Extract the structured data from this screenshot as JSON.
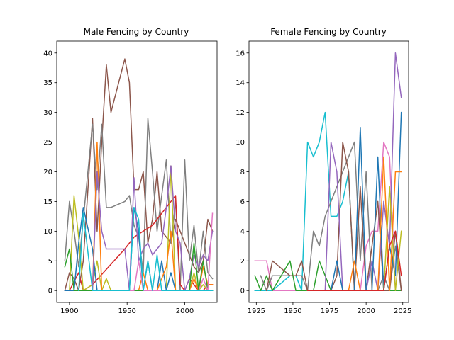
{
  "chart_data": [
    {
      "type": "line",
      "title": "Male Fencing by Country",
      "xlabel": "",
      "ylabel": "",
      "xlim": [
        1889,
        2028
      ],
      "ylim": [
        -2,
        42
      ],
      "xticks": [
        1900,
        1950,
        2000
      ],
      "yticks": [
        0,
        5,
        10,
        15,
        20,
        25,
        30,
        35,
        40
      ],
      "grid": false,
      "legend": "none",
      "series": [
        {
          "color": "#8c564b",
          "x": [
            1896,
            1900,
            1904,
            1908,
            1912,
            1920,
            1924,
            1928,
            1932,
            1936,
            1948,
            1952,
            1956,
            1960,
            1964,
            1968,
            1972,
            1976,
            1980,
            1984,
            1988,
            1992,
            1996,
            2000,
            2004,
            2008,
            2012,
            2016,
            2020,
            2024
          ],
          "values": [
            0,
            3,
            2,
            0,
            5,
            29,
            10,
            25,
            38,
            30,
            39,
            35,
            17,
            17,
            20,
            8,
            12,
            20,
            10,
            9,
            8,
            12,
            10,
            8,
            6,
            4,
            3,
            5,
            12,
            10
          ]
        },
        {
          "color": "#7f7f7f",
          "x": [
            1896,
            1900,
            1904,
            1908,
            1912,
            1920,
            1924,
            1928,
            1932,
            1936,
            1948,
            1952,
            1956,
            1960,
            1964,
            1968,
            1972,
            1976,
            1980,
            1984,
            1988,
            1992,
            1996,
            2000,
            2004,
            2008,
            2012,
            2016,
            2020,
            2024
          ],
          "values": [
            5,
            15,
            10,
            4,
            12,
            28,
            17,
            28,
            14,
            14,
            15,
            16,
            11,
            9,
            3,
            29,
            20,
            10,
            16,
            22,
            8,
            15,
            0,
            22,
            5,
            11,
            3,
            10,
            3,
            2
          ]
        },
        {
          "color": "#d62728",
          "x": [
            1900,
            1908,
            1912,
            1920,
            1948,
            1952,
            1956,
            1964,
            1972,
            1976,
            1980,
            1984,
            1988,
            1992,
            1996,
            2000,
            2004,
            2008,
            2012,
            2016,
            2020,
            2024
          ],
          "values": [
            0,
            3,
            0,
            1,
            7,
            8,
            9,
            10,
            11,
            12,
            13,
            14,
            15,
            16,
            1,
            0,
            2,
            1,
            0,
            0,
            1,
            1
          ]
        },
        {
          "color": "#bcbd22",
          "x": [
            1900,
            1904,
            1908,
            1912,
            1920,
            1924,
            1928,
            1932,
            1936,
            1948,
            1952,
            1956,
            1960,
            1964,
            1968,
            1972,
            1976,
            1980,
            1984,
            1988,
            1992,
            1996,
            2000,
            2004,
            2008,
            2012,
            2016,
            2020,
            2024
          ],
          "values": [
            0,
            16,
            9,
            0,
            1,
            5,
            0,
            2,
            0,
            0,
            0,
            0,
            0,
            0,
            0,
            0,
            0,
            0,
            0,
            21,
            0,
            0,
            0,
            0,
            3,
            0,
            1,
            0,
            0
          ]
        },
        {
          "color": "#1f77b4",
          "x": [
            1896,
            1900,
            1904,
            1908,
            1912,
            1920,
            1924,
            1928,
            1932,
            1936,
            1948,
            1952,
            1956,
            1960,
            1964,
            1968,
            1972,
            1976,
            1980,
            1984,
            1988,
            1992,
            1996,
            2000,
            2004,
            2008,
            2012,
            2016,
            2020,
            2024
          ],
          "values": [
            0,
            0,
            0,
            8,
            14,
            7,
            0,
            0,
            0,
            0,
            0,
            0,
            14,
            10,
            0,
            5,
            0,
            0,
            5,
            0,
            3,
            0,
            0,
            0,
            0,
            0,
            0,
            0,
            0,
            0
          ]
        },
        {
          "color": "#ff7f0e",
          "x": [
            1920,
            1924,
            1928,
            1932,
            1936,
            1952,
            1956,
            1960,
            1964,
            1968,
            1972,
            1976,
            1980,
            1984,
            1988,
            1992,
            1996,
            2000,
            2004,
            2008,
            2012,
            2016,
            2020,
            2024
          ],
          "values": [
            0,
            25,
            0,
            0,
            0,
            0,
            0,
            0,
            3,
            0,
            0,
            0,
            2,
            4,
            10,
            0,
            0,
            0,
            0,
            2,
            0,
            4,
            1,
            1
          ]
        },
        {
          "color": "#9467bd",
          "x": [
            1920,
            1924,
            1928,
            1932,
            1936,
            1948,
            1952,
            1956,
            1960,
            1964,
            1968,
            1972,
            1976,
            1980,
            1984,
            1988,
            1992,
            1996,
            2000,
            2004,
            2008,
            2012,
            2016,
            2020,
            2024
          ],
          "values": [
            0,
            20,
            10,
            7,
            7,
            7,
            0,
            19,
            5,
            7,
            8,
            6,
            7,
            8,
            14,
            21,
            10,
            8,
            0,
            2,
            6,
            4,
            6,
            5,
            10
          ]
        },
        {
          "color": "#2ca02c",
          "x": [
            1896,
            1900,
            1904,
            1908,
            1912,
            1920,
            1952,
            1956,
            1960,
            1964,
            1968,
            1972,
            1976,
            1980,
            1984,
            1988,
            1992,
            1996,
            2000,
            2004,
            2008,
            2012,
            2016,
            2020,
            2024
          ],
          "values": [
            4,
            7,
            0,
            0,
            0,
            0,
            0,
            0,
            0,
            0,
            0,
            0,
            0,
            0,
            0,
            0,
            0,
            0,
            0,
            0,
            8,
            0,
            5,
            0,
            0
          ]
        },
        {
          "color": "#e377c2",
          "x": [
            1920,
            1924,
            1928,
            1932,
            1936,
            1948,
            1952,
            1956,
            1960,
            1964,
            1968,
            1972,
            1976,
            1980,
            1984,
            1988,
            1992,
            1996,
            2000,
            2004,
            2008,
            2012,
            2016,
            2020,
            2024
          ],
          "values": [
            0,
            0,
            0,
            0,
            0,
            0,
            0,
            0,
            5,
            0,
            0,
            0,
            0,
            0,
            0,
            0,
            0,
            0,
            0,
            0,
            0,
            0,
            2,
            0,
            13
          ]
        },
        {
          "color": "#17becf",
          "x": [
            1908,
            1912,
            1920,
            1924,
            1928,
            1932,
            1936,
            1948,
            1952,
            1956,
            1960,
            1964,
            1968,
            1972,
            1976,
            1980,
            1984,
            1988,
            1992,
            1996,
            2000,
            2004,
            2008,
            2012,
            2016,
            2020,
            2024
          ],
          "values": [
            0,
            13,
            0,
            0,
            0,
            0,
            0,
            0,
            0,
            14,
            12,
            0,
            5,
            0,
            6,
            0,
            0,
            0,
            0,
            0,
            0,
            0,
            0,
            0,
            0,
            0,
            0
          ]
        }
      ]
    },
    {
      "type": "line",
      "title": "Female Fencing by Country",
      "xlabel": "",
      "ylabel": "",
      "xlim": [
        1920,
        2029
      ],
      "ylim": [
        -0.8,
        16.8
      ],
      "xticks": [
        1925,
        1950,
        1975,
        2000,
        2025
      ],
      "yticks": [
        0,
        2,
        4,
        6,
        8,
        10,
        12,
        14,
        16
      ],
      "grid": false,
      "legend": "none",
      "series": [
        {
          "color": "#e377c2",
          "x": [
            1924,
            1928,
            1932,
            1936,
            1948,
            1952,
            1956,
            1960,
            1964,
            1968,
            1972,
            1976,
            1980,
            1984,
            1988,
            1992,
            1996,
            2000,
            2004,
            2008,
            2012,
            2016,
            2020,
            2024
          ],
          "values": [
            2,
            2,
            2,
            0,
            0,
            0,
            0,
            0,
            0,
            0,
            0,
            0,
            0,
            0,
            0,
            0,
            0,
            3,
            4,
            4,
            10,
            9,
            0,
            0
          ]
        },
        {
          "color": "#17becf",
          "x": [
            1924,
            1928,
            1932,
            1936,
            1948,
            1952,
            1956,
            1960,
            1964,
            1968,
            1972,
            1976,
            1980,
            1984,
            1988,
            1992,
            1996,
            2000,
            2004,
            2008,
            2012,
            2016,
            2020,
            2024
          ],
          "values": [
            0,
            0,
            0,
            0,
            1,
            1,
            0,
            10,
            9,
            10,
            12,
            5,
            5,
            6,
            8,
            0,
            0,
            0,
            0,
            0,
            0,
            0,
            0,
            0
          ]
        },
        {
          "color": "#2ca02c",
          "x": [
            1924,
            1928,
            1932,
            1936,
            1948,
            1952,
            1956,
            1960,
            1964,
            1968,
            1972,
            1976,
            1980,
            1984,
            1988,
            1992,
            1996,
            2000,
            2004,
            2008,
            2012,
            2016,
            2020,
            2024
          ],
          "values": [
            1,
            0,
            1,
            0,
            2,
            0,
            0,
            0,
            0,
            2,
            1,
            0,
            0,
            0,
            0,
            0,
            0,
            0,
            0,
            0,
            0,
            0,
            0,
            0
          ]
        },
        {
          "color": "#7f7f7f",
          "x": [
            1928,
            1932,
            1936,
            1948,
            1952,
            1956,
            1960,
            1964,
            1968,
            1972,
            1976,
            1980,
            1984,
            1988,
            1992,
            1996,
            2000,
            2004,
            2008,
            2012,
            2016,
            2020,
            2024
          ],
          "values": [
            1,
            0,
            1,
            1,
            1,
            1,
            0,
            4,
            3,
            5,
            6,
            7,
            8,
            9,
            10,
            2,
            8,
            0,
            0,
            1,
            0,
            3,
            0
          ]
        },
        {
          "color": "#8c564b",
          "x": [
            1932,
            1936,
            1948,
            1952,
            1956,
            1960,
            1964,
            1968,
            1972,
            1976,
            1980,
            1984,
            1988,
            1992,
            1996,
            2000,
            2004,
            2008,
            2012,
            2016,
            2020,
            2024
          ],
          "values": [
            0,
            2,
            1,
            1,
            2,
            0,
            0,
            0,
            0,
            0,
            1,
            10,
            8,
            0,
            7,
            0,
            3,
            6,
            0,
            0,
            4,
            0
          ]
        },
        {
          "color": "#9467bd",
          "x": [
            1960,
            1964,
            1968,
            1972,
            1976,
            1980,
            1984,
            1988,
            1992,
            1996,
            2000,
            2004,
            2008,
            2012,
            2016,
            2020,
            2024
          ],
          "values": [
            0,
            0,
            0,
            0,
            10,
            8,
            0,
            0,
            0,
            0,
            0,
            2,
            0,
            6,
            3,
            16,
            13
          ]
        },
        {
          "color": "#1f77b4",
          "x": [
            1960,
            1964,
            1968,
            1972,
            1976,
            1980,
            1984,
            1988,
            1992,
            1996,
            2000,
            2004,
            2008,
            2012,
            2016,
            2020,
            2024
          ],
          "values": [
            0,
            0,
            0,
            0,
            0,
            2,
            0,
            0,
            0,
            11,
            0,
            0,
            9,
            0,
            3,
            1,
            12
          ]
        },
        {
          "color": "#ff7f0e",
          "x": [
            1960,
            1964,
            1968,
            1972,
            1976,
            1980,
            1984,
            1988,
            1992,
            1996,
            2000,
            2004,
            2008,
            2012,
            2016,
            2020,
            2024
          ],
          "values": [
            0,
            0,
            0,
            0,
            0,
            0,
            0,
            0,
            2,
            0,
            0,
            0,
            0,
            9,
            0,
            8,
            8
          ]
        },
        {
          "color": "#bcbd22",
          "x": [
            1960,
            1964,
            1968,
            1972,
            1976,
            1980,
            1984,
            1988,
            1992,
            1996,
            2000,
            2004,
            2008,
            2012,
            2016,
            2020,
            2024
          ],
          "values": [
            0,
            0,
            0,
            0,
            0,
            0,
            0,
            0,
            0,
            0,
            0,
            0,
            0,
            0,
            7,
            0,
            4
          ]
        },
        {
          "color": "#d62728",
          "x": [
            1960,
            1964,
            1968,
            1972,
            1976,
            1980,
            1984,
            1988,
            1992,
            1996,
            2000,
            2004,
            2008,
            2012,
            2016,
            2020,
            2024
          ],
          "values": [
            0,
            0,
            0,
            0,
            0,
            0,
            0,
            0,
            0,
            0,
            0,
            0,
            0,
            0,
            3,
            4,
            1
          ]
        }
      ]
    }
  ]
}
